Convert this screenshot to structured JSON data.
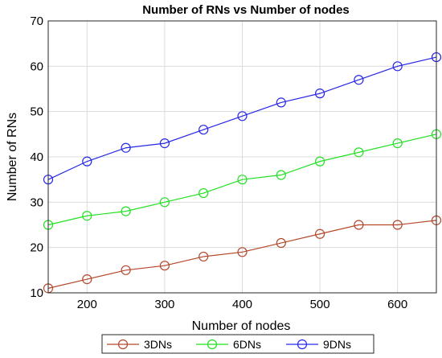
{
  "chart_data": {
    "type": "line",
    "title": "Number of RNs vs Number of nodes",
    "xlabel": "Number of nodes",
    "ylabel": "Number of RNs",
    "xlim": [
      150,
      650
    ],
    "ylim": [
      10,
      70
    ],
    "xticks": [
      200,
      300,
      400,
      500,
      600
    ],
    "yticks": [
      10,
      20,
      30,
      40,
      50,
      60,
      70
    ],
    "grid": true,
    "legend_position": "bottom",
    "x": [
      150,
      200,
      250,
      300,
      350,
      400,
      450,
      500,
      550,
      600,
      650
    ],
    "series": [
      {
        "name": "3DNs",
        "color": "#b5472a",
        "marker": "circle",
        "values": [
          11,
          13,
          15,
          16,
          18,
          19,
          21,
          23,
          25,
          25,
          26
        ]
      },
      {
        "name": "6DNs",
        "color": "#22e022",
        "marker": "circle",
        "values": [
          25,
          27,
          28,
          30,
          32,
          35,
          36,
          39,
          41,
          43,
          45
        ]
      },
      {
        "name": "9DNs",
        "color": "#2727e6",
        "marker": "circle",
        "values": [
          35,
          39,
          42,
          43,
          46,
          49,
          52,
          54,
          57,
          60,
          62
        ]
      }
    ]
  }
}
